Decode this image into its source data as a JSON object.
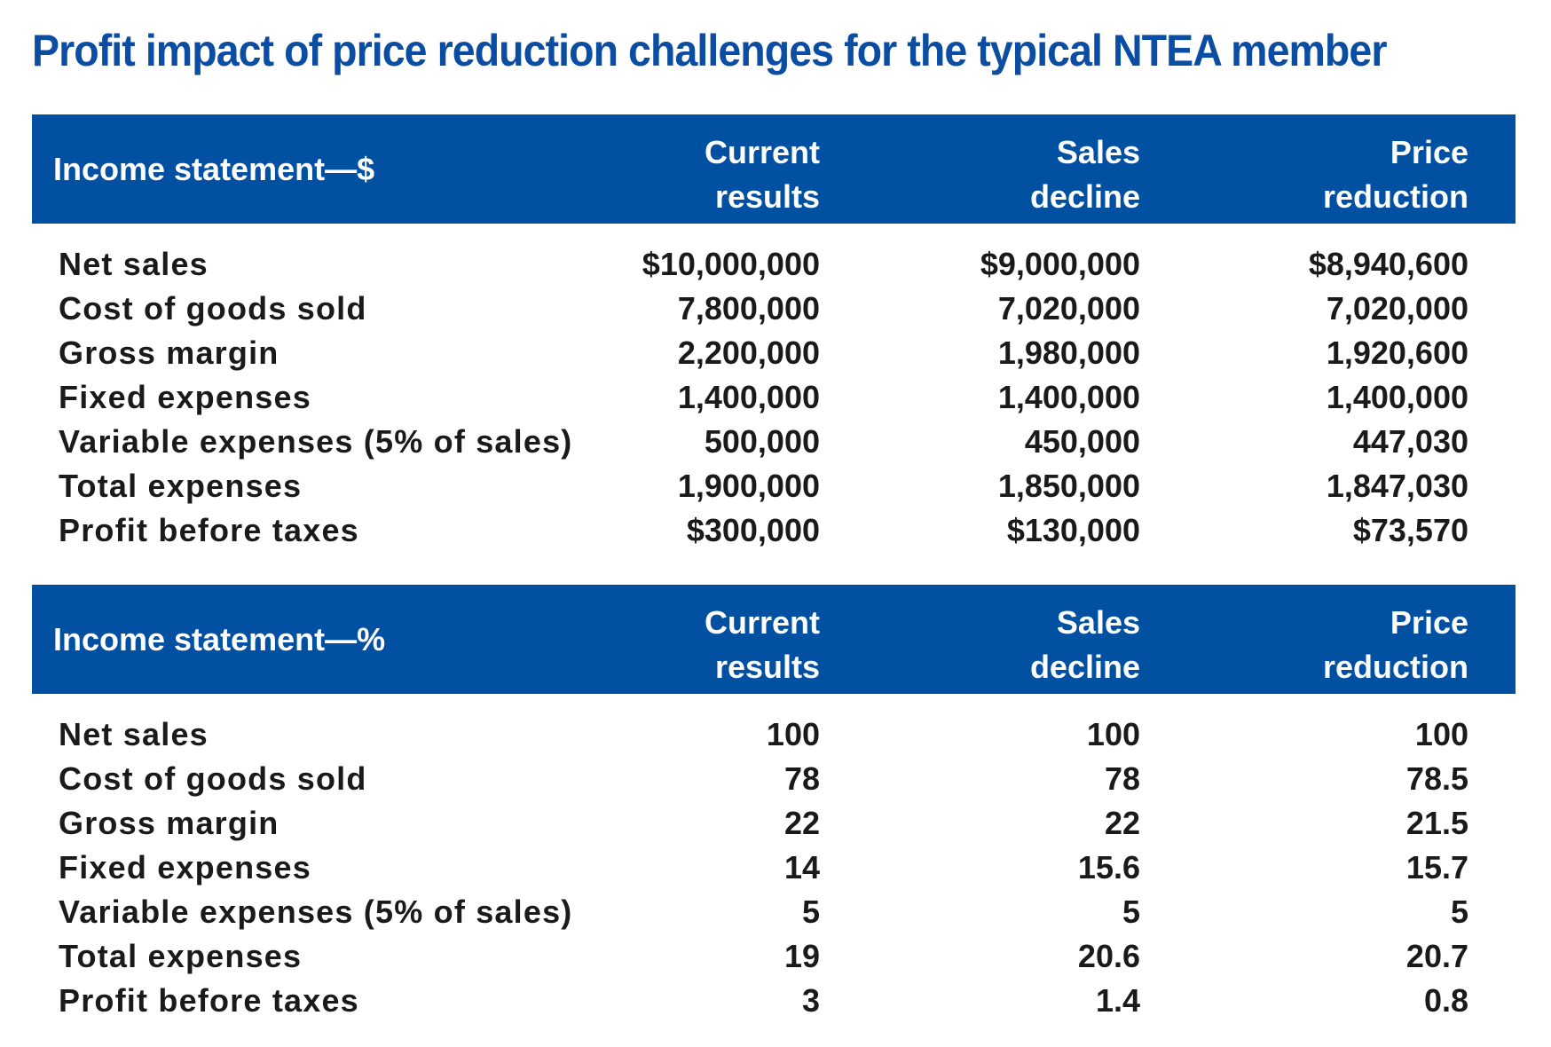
{
  "title": "Profit impact of price reduction challenges for the typical NTEA member",
  "columns": {
    "c1": [
      "Current",
      "results"
    ],
    "c2": [
      "Sales",
      "decline"
    ],
    "c3": [
      "Price",
      "reduction"
    ]
  },
  "dollars": {
    "label": "Income statement—$",
    "rows": [
      {
        "label": "Net sales",
        "values": [
          "$10,000,000",
          "$9,000,000",
          "$8,940,600"
        ]
      },
      {
        "label": "Cost of goods sold",
        "values": [
          "7,800,000",
          "7,020,000",
          "7,020,000"
        ]
      },
      {
        "label": "Gross margin",
        "values": [
          "2,200,000",
          "1,980,000",
          "1,920,600"
        ]
      },
      {
        "label": "Fixed expenses",
        "values": [
          "1,400,000",
          "1,400,000",
          "1,400,000"
        ]
      },
      {
        "label": "Variable expenses (5% of sales)",
        "values": [
          "500,000",
          "450,000",
          "447,030"
        ]
      },
      {
        "label": "Total expenses",
        "values": [
          "1,900,000",
          "1,850,000",
          "1,847,030"
        ]
      },
      {
        "label": "Profit before taxes",
        "values": [
          "$300,000",
          "$130,000",
          "$73,570"
        ]
      }
    ]
  },
  "percent": {
    "label": "Income statement—%",
    "rows": [
      {
        "label": "Net sales",
        "values": [
          "100",
          "100",
          "100"
        ]
      },
      {
        "label": "Cost of goods sold",
        "values": [
          "78",
          "78",
          "78.5"
        ]
      },
      {
        "label": "Gross margin",
        "values": [
          "22",
          "22",
          "21.5"
        ]
      },
      {
        "label": "Fixed expenses",
        "values": [
          "14",
          "15.6",
          "15.7"
        ]
      },
      {
        "label": "Variable expenses (5% of sales)",
        "values": [
          "5",
          "5",
          "5"
        ]
      },
      {
        "label": "Total expenses",
        "values": [
          "19",
          "20.6",
          "20.7"
        ]
      },
      {
        "label": "Profit before taxes",
        "values": [
          "3",
          "1.4",
          "0.8"
        ]
      }
    ]
  },
  "colors": {
    "header_bg": "#0250a2",
    "title": "#0a4da3",
    "text": "#1a1a1a"
  }
}
